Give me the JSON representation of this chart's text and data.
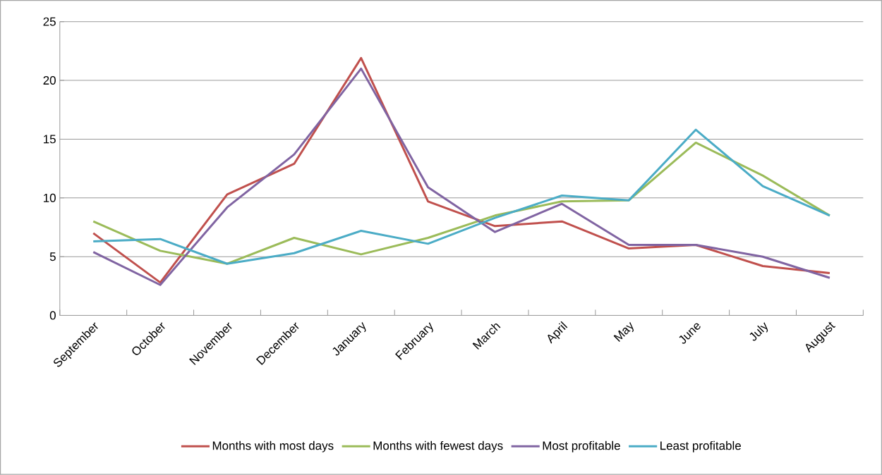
{
  "chart_data": {
    "type": "line",
    "categories": [
      "September",
      "October",
      "November",
      "December",
      "January",
      "February",
      "March",
      "April",
      "May",
      "June",
      "July",
      "August"
    ],
    "series": [
      {
        "name": "Months with most days",
        "color": "#c0504d",
        "values": [
          7.0,
          2.8,
          10.3,
          12.9,
          21.9,
          9.7,
          7.6,
          8.0,
          5.7,
          6.0,
          4.2,
          3.6
        ]
      },
      {
        "name": "Months with fewest  days",
        "color": "#9bbb59",
        "values": [
          8.0,
          5.5,
          4.4,
          6.6,
          5.2,
          6.6,
          8.5,
          9.7,
          9.8,
          14.7,
          11.9,
          8.5
        ]
      },
      {
        "name": "Most profitable",
        "color": "#8064a2",
        "values": [
          5.4,
          2.6,
          9.2,
          13.7,
          21.0,
          10.9,
          7.1,
          9.5,
          6.0,
          6.0,
          5.0,
          3.2
        ]
      },
      {
        "name": "Least profitable",
        "color": "#4bacc6",
        "values": [
          6.3,
          6.5,
          4.4,
          5.3,
          7.2,
          6.1,
          8.3,
          10.2,
          9.8,
          15.8,
          11.0,
          8.5
        ]
      }
    ],
    "ylim": [
      0,
      25
    ],
    "yticks": [
      0,
      5,
      10,
      15,
      20,
      25
    ],
    "grid": "y",
    "legend": "bottom",
    "marker": "none",
    "line_style": "solid"
  }
}
